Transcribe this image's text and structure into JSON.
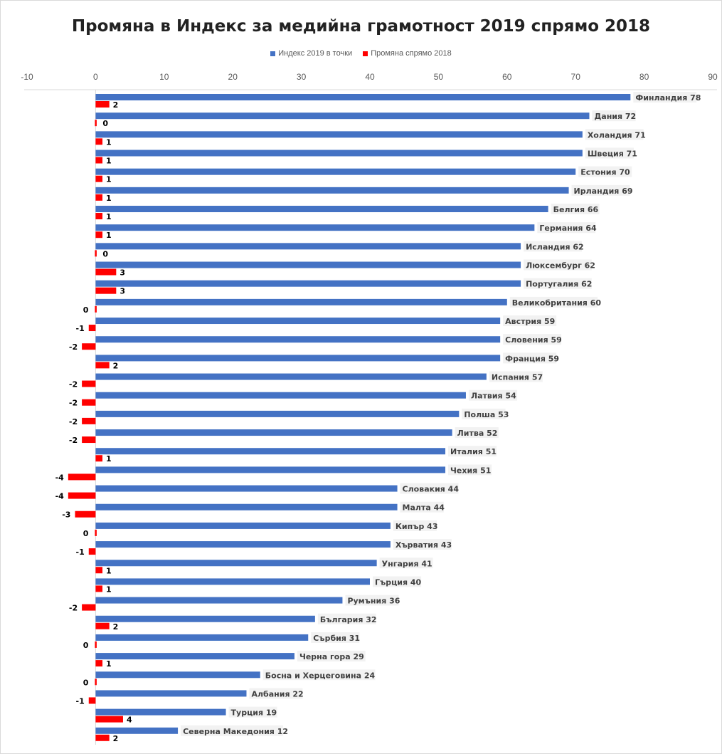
{
  "chart_data": {
    "type": "bar",
    "orientation": "horizontal",
    "title": "Промяна в Индекс за медийна грамотност 2019 спрямо 2018",
    "legend_position": "top",
    "xlim": [
      -10,
      90
    ],
    "xticks": [
      -10,
      0,
      10,
      20,
      30,
      40,
      50,
      60,
      70,
      80,
      90
    ],
    "grid": false,
    "colors": {
      "index": "#4472c4",
      "change": "#ff0000"
    },
    "categories": [
      "Финландия",
      "Дания",
      "Холандия",
      "Швеция",
      "Естония",
      "Ирландия",
      "Белгия",
      "Германия",
      "Исландия",
      "Люксембург",
      "Португалия",
      "Великобритания",
      "Австрия",
      "Словения",
      "Франция",
      "Испания",
      "Латвия",
      "Полша",
      "Литва",
      "Италия",
      "Чехия",
      "Словакия",
      "Малта",
      "Кипър",
      "Хърватия",
      "Унгария",
      "Гърция",
      "Румъния",
      "България",
      "Сърбия",
      "Черна гора",
      "Босна и Херцеговина",
      "Албания",
      "Турция",
      "Северна Македония"
    ],
    "series": [
      {
        "name": "Индекс 2019 в точки",
        "values": [
          78,
          72,
          71,
          71,
          70,
          69,
          66,
          64,
          62,
          62,
          62,
          60,
          59,
          59,
          59,
          57,
          54,
          53,
          52,
          51,
          51,
          44,
          44,
          43,
          43,
          41,
          40,
          36,
          32,
          31,
          29,
          24,
          22,
          19,
          12
        ]
      },
      {
        "name": "Промяна спрямо 2018",
        "values": [
          2,
          0,
          1,
          1,
          1,
          1,
          1,
          1,
          0,
          3,
          3,
          0,
          -1,
          -2,
          2,
          -2,
          -2,
          -2,
          -2,
          1,
          -4,
          -4,
          -3,
          0,
          -1,
          1,
          1,
          -2,
          2,
          0,
          1,
          0,
          -1,
          4,
          2
        ]
      }
    ]
  }
}
